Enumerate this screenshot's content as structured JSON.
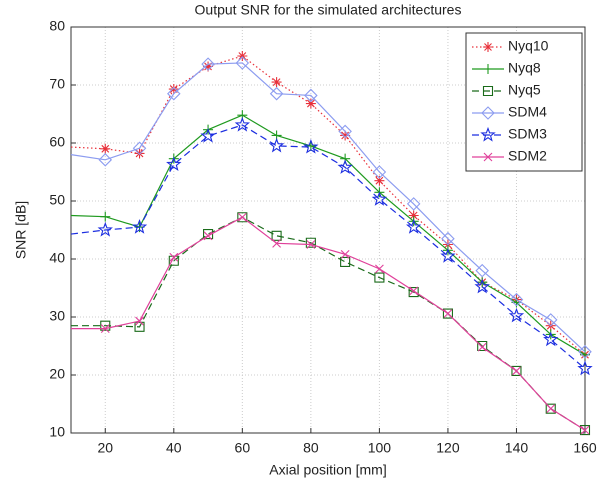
{
  "chart_data": {
    "type": "line",
    "title": "Output SNR for the simulated architectures",
    "x_label": "Axial position [mm]",
    "y_label": "SNR [dB]",
    "x": [
      10,
      20,
      30,
      40,
      50,
      60,
      70,
      80,
      90,
      100,
      110,
      120,
      130,
      140,
      150,
      160
    ],
    "xlim": [
      10,
      160
    ],
    "xticks": [
      20,
      40,
      60,
      80,
      100,
      120,
      140,
      160
    ],
    "ylim": [
      10,
      80
    ],
    "yticks": [
      10,
      20,
      30,
      40,
      50,
      60,
      70,
      80
    ],
    "grid": true,
    "legend": "top-right",
    "series": [
      {
        "name": "Nyq10",
        "color": "#e8303a",
        "dash": "dotted",
        "marker": "asterisk",
        "values": [
          59.3,
          59,
          58.2,
          69.3,
          73.2,
          75,
          70.5,
          66.8,
          61.3,
          53.5,
          47.5,
          42.5,
          36,
          33,
          28.5,
          23.5
        ]
      },
      {
        "name": "Nyq8",
        "color": "#1f9a1f",
        "dash": "solid",
        "marker": "plus",
        "values": [
          47.5,
          47.3,
          45.5,
          57.3,
          62.3,
          64.8,
          61.3,
          59.5,
          57.3,
          51.5,
          46.5,
          41.5,
          36,
          32.5,
          27,
          23.5
        ]
      },
      {
        "name": "Nyq5",
        "color": "#1a6b1a",
        "dash": "dashed",
        "marker": "square",
        "values": [
          28.5,
          28.5,
          28.3,
          39.7,
          44.3,
          47.2,
          44,
          42.8,
          39.5,
          36.8,
          34.3,
          30.6,
          25,
          20.7,
          14.2,
          10.5
        ]
      },
      {
        "name": "SDM4",
        "color": "#8c9cf0",
        "dash": "solid",
        "marker": "diamond",
        "values": [
          58,
          57.1,
          59.1,
          68.5,
          73.6,
          73.8,
          68.5,
          68.2,
          62,
          55,
          49.5,
          43.5,
          38,
          33,
          29.5,
          24
        ]
      },
      {
        "name": "SDM3",
        "color": "#1c2ee0",
        "dash": "dashed",
        "marker": "pentagram",
        "values": [
          44.3,
          45,
          45.5,
          56.3,
          61.2,
          63.1,
          59.5,
          59.3,
          55.8,
          50.3,
          45.5,
          40.5,
          35.2,
          30.2,
          26.1,
          21.1
        ]
      },
      {
        "name": "SDM2",
        "color": "#e0409a",
        "dash": "solid",
        "marker": "x",
        "values": [
          28,
          28,
          29.3,
          40.3,
          44,
          47.2,
          42.7,
          42.5,
          40.8,
          38.3,
          34.5,
          30.6,
          24.8,
          20.7,
          14.2,
          10.5
        ]
      }
    ]
  }
}
